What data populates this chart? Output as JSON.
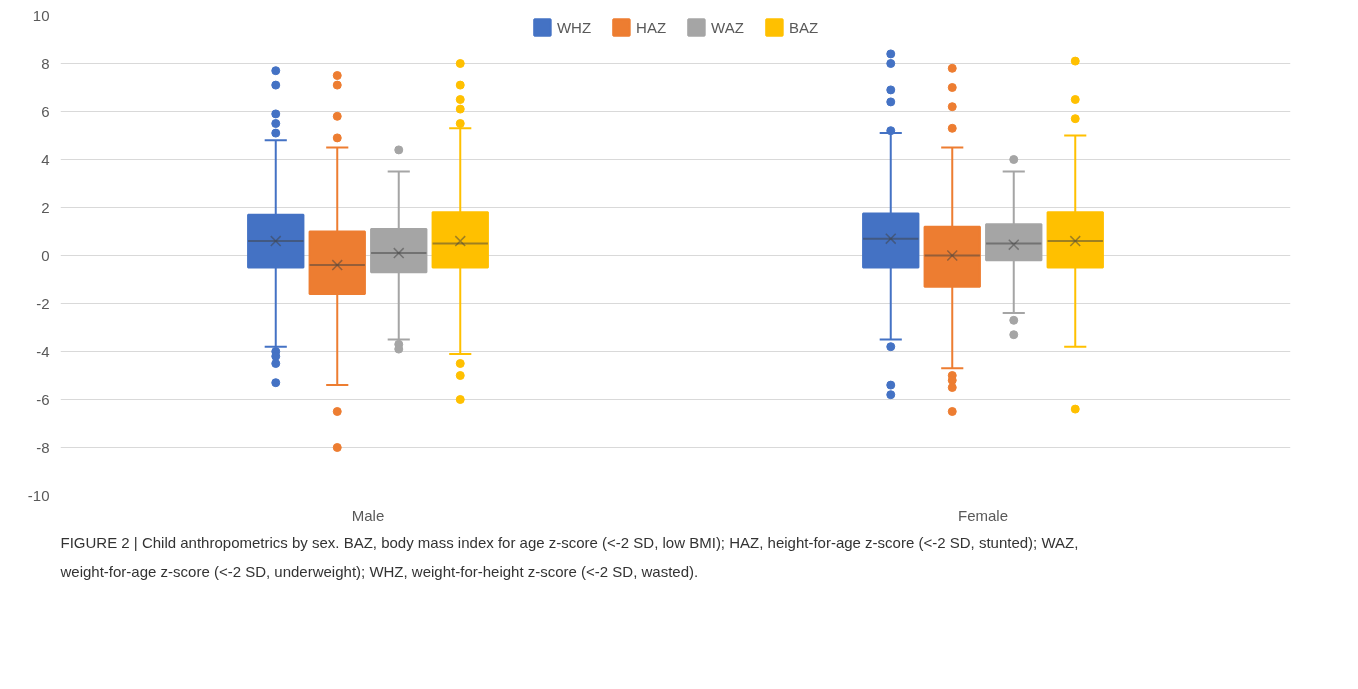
{
  "chart_data": {
    "type": "box",
    "categories": [
      "Male",
      "Female"
    ],
    "ylim": [
      -10,
      10
    ],
    "yticks": [
      -10,
      -8,
      -6,
      -4,
      -2,
      0,
      2,
      4,
      6,
      8,
      10
    ],
    "grid": "y",
    "legend": "top",
    "series": [
      {
        "name": "WHZ",
        "color": "#4472c4",
        "boxes": [
          {
            "low": -3.8,
            "q1": -0.5,
            "median": 0.6,
            "q3": 1.7,
            "high": 4.8,
            "mean": 0.6,
            "outliers": [
              7.7,
              7.1,
              5.9,
              5.5,
              5.1,
              -4.0,
              -4.2,
              -4.5,
              -5.3
            ]
          },
          {
            "low": -3.5,
            "q1": -0.5,
            "median": 0.7,
            "q3": 1.75,
            "high": 5.1,
            "mean": 0.7,
            "outliers": [
              8.4,
              8.0,
              6.9,
              6.4,
              5.2,
              -3.8,
              -5.4,
              -5.8
            ]
          }
        ]
      },
      {
        "name": "HAZ",
        "color": "#ed7d31",
        "boxes": [
          {
            "low": -5.4,
            "q1": -1.6,
            "median": -0.4,
            "q3": 1.0,
            "high": 4.5,
            "mean": -0.4,
            "outliers": [
              7.5,
              7.1,
              5.8,
              4.9,
              -6.5,
              -8.0
            ]
          },
          {
            "low": -4.7,
            "q1": -1.3,
            "median": 0.0,
            "q3": 1.2,
            "high": 4.5,
            "mean": 0.0,
            "outliers": [
              7.8,
              7.0,
              6.2,
              5.3,
              -5.0,
              -5.2,
              -5.5,
              -6.5
            ]
          }
        ]
      },
      {
        "name": "WAZ",
        "color": "#a5a5a5",
        "boxes": [
          {
            "low": -3.5,
            "q1": -0.7,
            "median": 0.1,
            "q3": 1.1,
            "high": 3.5,
            "mean": 0.1,
            "outliers": [
              4.4,
              -3.7,
              -3.9
            ]
          },
          {
            "low": -2.4,
            "q1": -0.2,
            "median": 0.5,
            "q3": 1.3,
            "high": 3.5,
            "mean": 0.45,
            "outliers": [
              4.0,
              -2.7,
              -3.3
            ]
          }
        ]
      },
      {
        "name": "BAZ",
        "color": "#ffc000",
        "boxes": [
          {
            "low": -4.1,
            "q1": -0.5,
            "median": 0.5,
            "q3": 1.8,
            "high": 5.3,
            "mean": 0.6,
            "outliers": [
              8.0,
              7.1,
              6.5,
              6.1,
              5.5,
              -4.5,
              -5.0,
              -6.0
            ]
          },
          {
            "low": -3.8,
            "q1": -0.5,
            "median": 0.6,
            "q3": 1.8,
            "high": 5.0,
            "mean": 0.6,
            "outliers": [
              8.1,
              6.5,
              5.7,
              -6.4
            ]
          }
        ]
      }
    ],
    "annotations": [
      "FIGURE 2 | Child anthropometrics by sex. BAZ, body mass index for age z-score (<-2 SD, low BMI); HAZ, height-for-age z-score (<-2 SD, stunted); WAZ, weight-for-age z-score (<-2 SD, underweight); WHZ, weight-for-height z-score (<-2 SD, wasted)."
    ]
  }
}
